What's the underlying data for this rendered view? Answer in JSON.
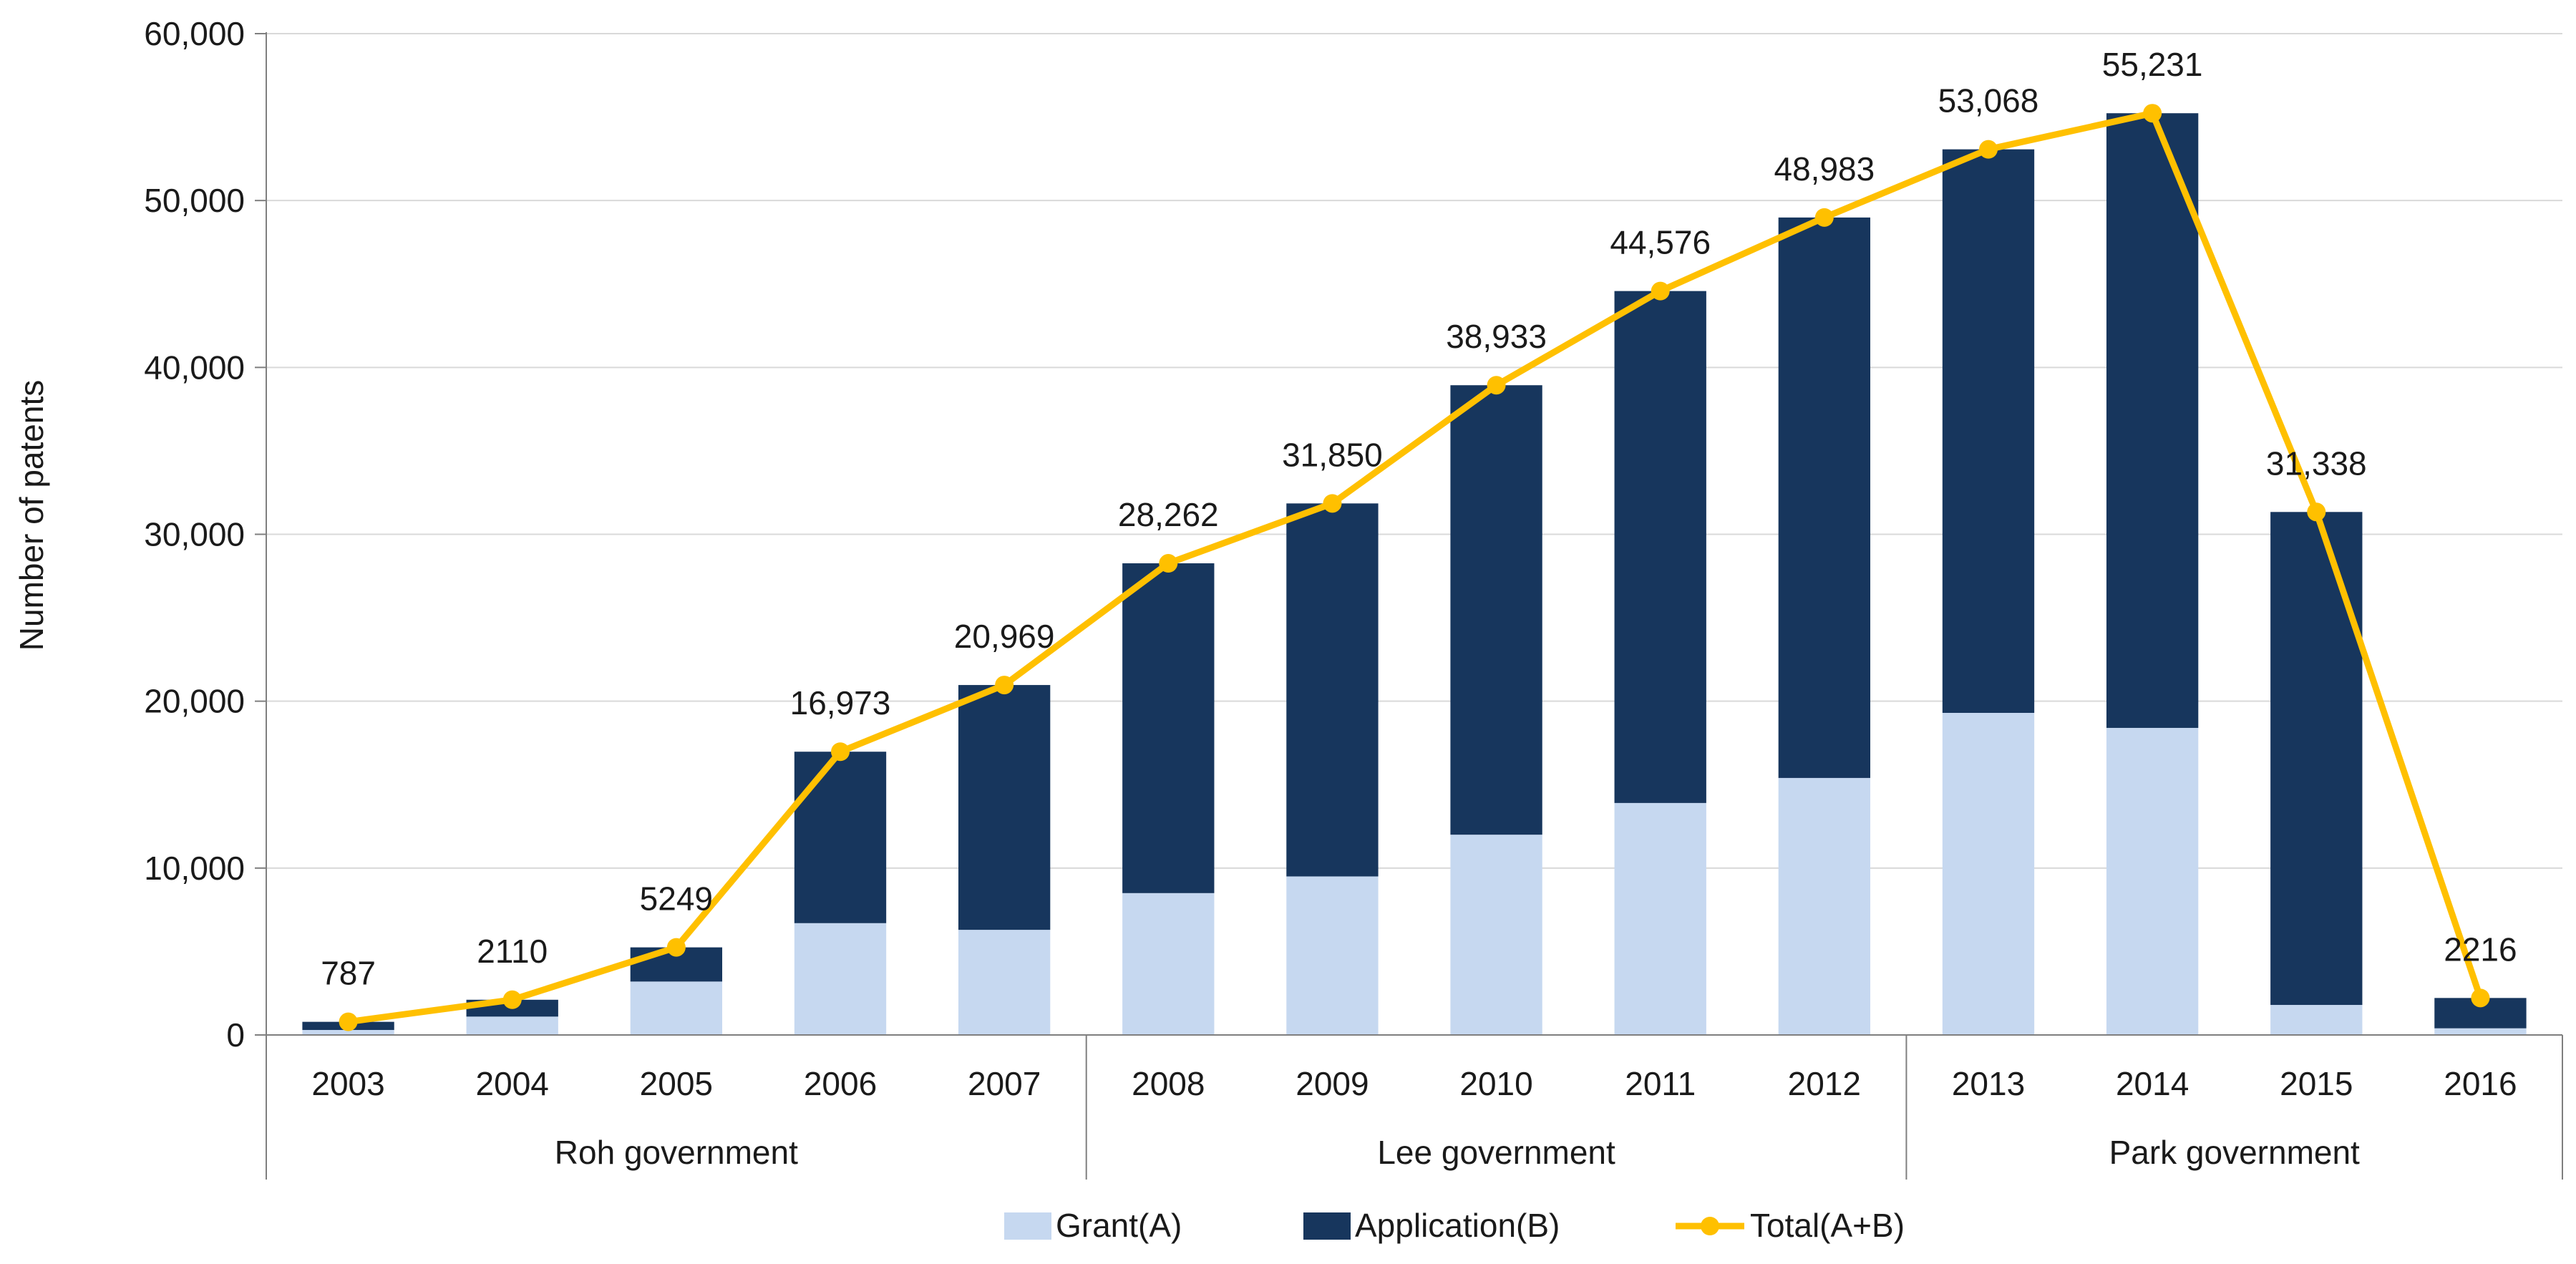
{
  "chart_data": {
    "type": "bar",
    "stacked": true,
    "categories": [
      "2003",
      "2004",
      "2005",
      "2006",
      "2007",
      "2008",
      "2009",
      "2010",
      "2011",
      "2012",
      "2013",
      "2014",
      "2015",
      "2016"
    ],
    "groups": [
      {
        "label": "Roh government",
        "from": 0,
        "to": 4
      },
      {
        "label": "Lee government",
        "from": 5,
        "to": 9
      },
      {
        "label": "Park government",
        "from": 10,
        "to": 13
      }
    ],
    "series": [
      {
        "name": "Grant(A)",
        "type": "bar",
        "color": "#c6d8f0",
        "values": [
          300,
          1100,
          3200,
          6700,
          6300,
          8500,
          9500,
          12000,
          13900,
          15400,
          19300,
          18400,
          1800,
          400
        ]
      },
      {
        "name": "Application(B)",
        "type": "bar",
        "color": "#17365d",
        "values": [
          487,
          1010,
          2049,
          10273,
          14669,
          19762,
          22350,
          26933,
          30676,
          33583,
          33768,
          36831,
          29538,
          1816
        ]
      },
      {
        "name": "Total(A+B)",
        "type": "line",
        "color": "#ffc000",
        "values": [
          787,
          2110,
          5249,
          16973,
          20969,
          28262,
          31850,
          38933,
          44576,
          48983,
          53068,
          55231,
          31338,
          2216
        ]
      }
    ],
    "data_labels": [
      "787",
      "2110",
      "5249",
      "16,973",
      "20,969",
      "28,262",
      "31,850",
      "38,933",
      "44,576",
      "48,983",
      "53,068",
      "55,231",
      "31,338",
      "2216"
    ],
    "y_ticks": [
      "0",
      "10,000",
      "20,000",
      "30,000",
      "40,000",
      "50,000",
      "60,000"
    ],
    "ylim": [
      0,
      60000
    ],
    "ylabel": "Number of patents",
    "xlabel": "",
    "title": "",
    "grid": true,
    "legend_position": "bottom"
  }
}
